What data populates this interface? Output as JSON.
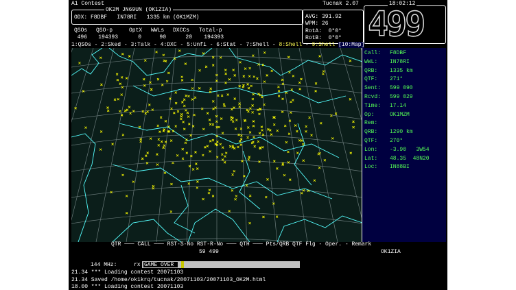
{
  "header": {
    "contest": "A1 Contest",
    "app": "Tucnak 2.07",
    "clock": "18:02:12",
    "big_number": "499"
  },
  "status": {
    "station": "OK2M JN69UN (OK1ZIA)",
    "odx": "ODX: F8DBF   IN78RI   1335 km (OK1MZM)",
    "stats_header": [
      "QSOs",
      "QSO-p",
      "OptX",
      "WWLs",
      "DXCCs",
      "Total-p"
    ],
    "stats_values": [
      "496",
      "194393",
      "0",
      "90",
      "20",
      "194393"
    ],
    "avg": "AVG: 391.92",
    "wpm": "WPM: 26",
    "rota": "RotA:  0*0°",
    "rotb": "RotB:  0*0°"
  },
  "tabs": [
    {
      "label": "1:QSOs",
      "color": "#ffffff"
    },
    {
      "label": "2:Sked",
      "color": "#ffffff"
    },
    {
      "label": "3:Talk",
      "color": "#ffffff"
    },
    {
      "label": "4:DXC",
      "color": "#ffffff"
    },
    {
      "label": "5:Unfi",
      "color": "#ffffff"
    },
    {
      "label": "6:Stat",
      "color": "#ffffff"
    },
    {
      "label": "7:Shell",
      "color": "#ffffff"
    },
    {
      "label": "8:Shell",
      "color": "#ffff55"
    },
    {
      "label": "9:Shell",
      "color": "#ffff55"
    },
    {
      "label": "[10:Map]",
      "color": "#ffffff"
    }
  ],
  "info_panel": [
    {
      "label": "Call:",
      "value": "F8DBF"
    },
    {
      "label": "WWL:",
      "value": "IN78RI"
    },
    {
      "label": "QRB:",
      "value": "1335 km"
    },
    {
      "label": "QTF:",
      "value": "271°"
    },
    {
      "label": "Sent:",
      "value": "599 090"
    },
    {
      "label": "Rcvd:",
      "value": "599 029"
    },
    {
      "label": "Time:",
      "value": "17.14"
    },
    {
      "label": "Op:",
      "value": "OK1MZM"
    },
    {
      "label": "Rem:",
      "value": ""
    },
    {
      "label": "QRB:",
      "value": "1290 km"
    },
    {
      "label": "QTF:",
      "value": "270°"
    },
    {
      "label": "Lon:",
      "value": "-3.90   3W54"
    },
    {
      "label": "Lat:",
      "value": "48.35  48N20"
    },
    {
      "label": "Loc:",
      "value": "IN88BI"
    }
  ],
  "entry": {
    "columns": "QTR ─── CALL ─── RST-S-No RST-R-No ─── QTH ─── Pts/QRB QTF Flg - Oper. - Remark",
    "rst": "59 499",
    "operator": "OK1ZIA"
  },
  "band": {
    "freq": "144 MHz:",
    "mode": "rx",
    "status": "GAME OVER"
  },
  "log": [
    "21.34 *** Loading contest 20071103",
    "21.34 Saved /home/ok1krq/tucnak/20071103/20071103_OK2M.html",
    "18.00 *** Loading contest 20071103"
  ]
}
